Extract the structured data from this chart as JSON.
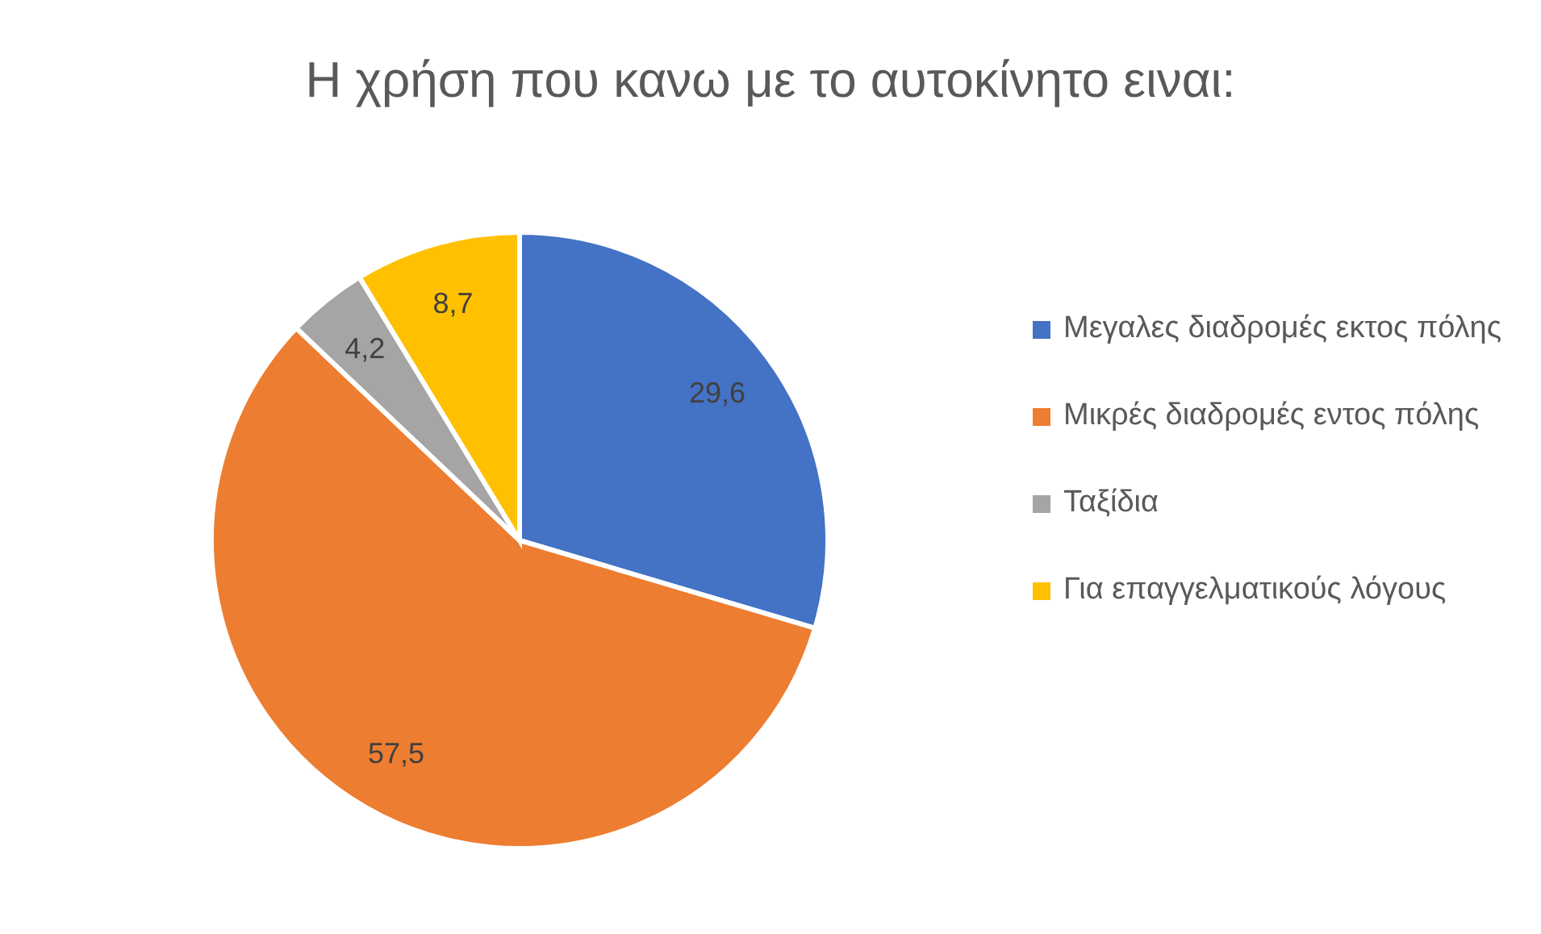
{
  "chart_data": {
    "type": "pie",
    "title": "Η χρήση που κανω με το αυτοκίνητο ειναι:",
    "categories": [
      "Μεγαλες διαδρομές εκτος πόλης",
      "Μικρές διαδρομές εντος πόλης",
      "Ταξίδια",
      "Για επαγγελματικούς λόγους"
    ],
    "values": [
      29.6,
      57.5,
      4.2,
      8.7
    ],
    "colors": [
      "#4472c4",
      "#ed7d31",
      "#a5a5a5",
      "#ffc000"
    ],
    "value_labels": [
      "29,6",
      "57,5",
      "4,2",
      "8,7"
    ],
    "legend": "right"
  }
}
